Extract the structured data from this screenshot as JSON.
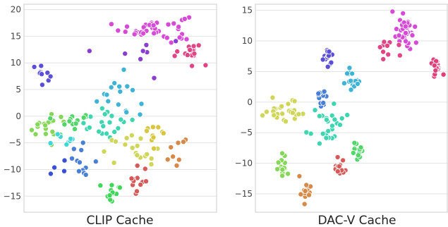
{
  "chart_data": [
    {
      "type": "scatter",
      "title": "CLIP Cache",
      "xlabel": "",
      "ylabel": "",
      "ylim": [
        -18,
        21
      ],
      "xlim": [
        0,
        1
      ],
      "grid": true,
      "yticks": [
        -15,
        -10,
        -5,
        0,
        5,
        10,
        15,
        20
      ],
      "clusters": [
        {
          "color": "#d64bd6",
          "cx": 0.68,
          "cy": 16.5,
          "sx": 0.09,
          "sy": 1.3,
          "n": 40
        },
        {
          "color": "#e04585",
          "cx": 0.87,
          "cy": 12.0,
          "sx": 0.05,
          "sy": 0.9,
          "n": 15
        },
        {
          "color": "#5a4fd6",
          "cx": 0.09,
          "cy": 8.0,
          "sx": 0.03,
          "sy": 1.0,
          "n": 12
        },
        {
          "color": "#8a3ed0",
          "cx": 0.62,
          "cy": 11.5,
          "sx": 0.08,
          "sy": 2.0,
          "n": 8
        },
        {
          "color": "#3eb3d6",
          "cx": 0.48,
          "cy": 4.5,
          "sx": 0.05,
          "sy": 2.6,
          "n": 16
        },
        {
          "color": "#3ed6b0",
          "cx": 0.42,
          "cy": -1.0,
          "sx": 0.07,
          "sy": 1.6,
          "n": 20
        },
        {
          "color": "#86d65a",
          "cx": 0.12,
          "cy": -2.0,
          "sx": 0.05,
          "sy": 1.1,
          "n": 18
        },
        {
          "color": "#52d66a",
          "cx": 0.26,
          "cy": -1.0,
          "sx": 0.06,
          "sy": 1.3,
          "n": 14
        },
        {
          "color": "#cfd65a",
          "cx": 0.55,
          "cy": -6.5,
          "sx": 0.08,
          "sy": 1.3,
          "n": 18
        },
        {
          "color": "#d6c640",
          "cx": 0.67,
          "cy": -3.0,
          "sx": 0.03,
          "sy": 1.2,
          "n": 10
        },
        {
          "color": "#4a7fd6",
          "cx": 0.31,
          "cy": -8.0,
          "sx": 0.03,
          "sy": 1.3,
          "n": 12
        },
        {
          "color": "#3ed6d6",
          "cx": 0.22,
          "cy": -5.0,
          "sx": 0.04,
          "sy": 0.9,
          "n": 8
        },
        {
          "color": "#d65a5a",
          "cx": 0.6,
          "cy": -12.5,
          "sx": 0.03,
          "sy": 1.8,
          "n": 12
        },
        {
          "color": "#40d65a",
          "cx": 0.47,
          "cy": -14.5,
          "sx": 0.04,
          "sy": 1.0,
          "n": 12
        },
        {
          "color": "#d68a4a",
          "cx": 0.79,
          "cy": -6.5,
          "sx": 0.04,
          "sy": 1.2,
          "n": 8
        },
        {
          "color": "#3a4fd6",
          "cx": 0.16,
          "cy": -9.5,
          "sx": 0.04,
          "sy": 0.8,
          "n": 4
        }
      ]
    },
    {
      "type": "scatter",
      "title": "DAC-V Cache",
      "xlabel": "",
      "ylabel": "",
      "ylim": [
        -18,
        16
      ],
      "xlim": [
        0,
        1
      ],
      "grid": true,
      "yticks": [
        -15,
        -10,
        -5,
        0,
        5,
        10,
        15
      ],
      "clusters": [
        {
          "color": "#d64bd6",
          "cx": 0.78,
          "cy": 11.5,
          "sx": 0.04,
          "sy": 1.6,
          "n": 40
        },
        {
          "color": "#e04585",
          "cx": 0.7,
          "cy": 9.0,
          "sx": 0.03,
          "sy": 0.9,
          "n": 10
        },
        {
          "color": "#e0407a",
          "cx": 0.94,
          "cy": 5.7,
          "sx": 0.015,
          "sy": 0.7,
          "n": 14
        },
        {
          "color": "#5a4fd6",
          "cx": 0.38,
          "cy": 7.6,
          "sx": 0.02,
          "sy": 0.7,
          "n": 14
        },
        {
          "color": "#3eb3d6",
          "cx": 0.51,
          "cy": 3.7,
          "sx": 0.02,
          "sy": 0.9,
          "n": 16
        },
        {
          "color": "#4a7fd6",
          "cx": 0.34,
          "cy": 0.5,
          "sx": 0.015,
          "sy": 0.8,
          "n": 14
        },
        {
          "color": "#cfd65a",
          "cx": 0.17,
          "cy": -1.5,
          "sx": 0.07,
          "sy": 0.8,
          "n": 26
        },
        {
          "color": "#3ed6b0",
          "cx": 0.37,
          "cy": -4.5,
          "sx": 0.05,
          "sy": 1.6,
          "n": 26
        },
        {
          "color": "#52d66a",
          "cx": 0.53,
          "cy": -8.3,
          "sx": 0.02,
          "sy": 0.9,
          "n": 14
        },
        {
          "color": "#86d65a",
          "cx": 0.14,
          "cy": -10.3,
          "sx": 0.015,
          "sy": 0.9,
          "n": 14
        },
        {
          "color": "#d65a5a",
          "cx": 0.44,
          "cy": -10.5,
          "sx": 0.02,
          "sy": 1.0,
          "n": 14
        },
        {
          "color": "#d68a4a",
          "cx": 0.26,
          "cy": -14.5,
          "sx": 0.015,
          "sy": 1.0,
          "n": 14
        }
      ]
    }
  ]
}
